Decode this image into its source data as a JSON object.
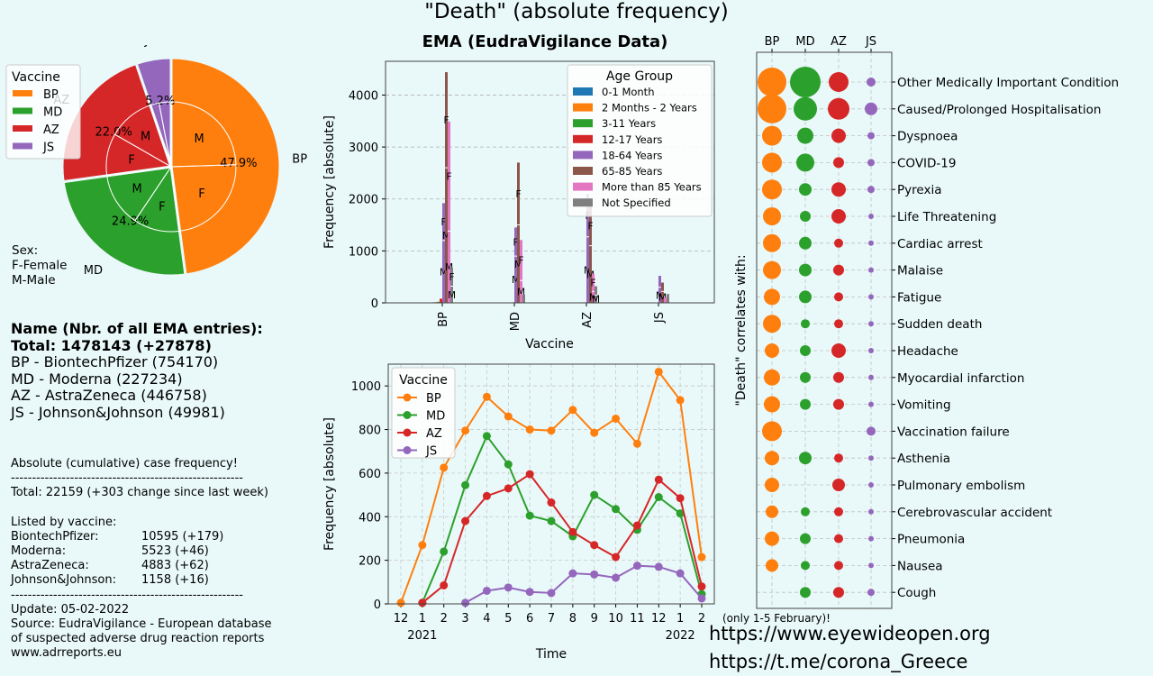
{
  "page_title": "\"Death\" (absolute frequency)",
  "legend_colors": {
    "BP": "#ff7f0e",
    "MD": "#2ca02c",
    "AZ": "#d62728",
    "JS": "#9467bd"
  },
  "pie_legend": {
    "title": "Vaccine",
    "items": [
      "BP",
      "MD",
      "AZ",
      "JS"
    ]
  },
  "sex_note": [
    "Sex:",
    "F-Female",
    "M-Male"
  ],
  "summary": {
    "heading": "Name  (Nbr. of all EMA entries):",
    "total": "Total: 1478143 (+27878)",
    "lines": [
      "BP - BiontechPfizer (754170)",
      "MD - Moderna (227234)",
      "AZ - AstraZeneca (446758)",
      "JS - Johnson&Johnson (49981)"
    ]
  },
  "cases": {
    "heading": "Absolute (cumulative) case frequency!",
    "divider": "-------------------------------------------------------",
    "total": "Total: 22159 (+303 change since last week)",
    "listed": "Listed by vaccine:",
    "rows": [
      {
        "name": "BiontechPfizer:",
        "value": "10595 (+179)"
      },
      {
        "name": "Moderna:",
        "value": "5523 (+46)"
      },
      {
        "name": "AstraZeneca:",
        "value": "4883 (+62)"
      },
      {
        "name": "Johnson&Johnson:",
        "value": "1158 (+16)"
      }
    ],
    "update": "Update: 05-02-2022",
    "source1": "Source: EudraVigilance - European database",
    "source2": "of suspected adverse drug reaction reports",
    "source3": "www.adrreports.eu"
  },
  "note_only": "(only 1-5 February)!",
  "links": [
    "https://www.eyewideopen.org",
    "https://t.me/corona_Greece"
  ],
  "chart_data": [
    {
      "type": "pie",
      "title": "",
      "outer": [
        {
          "label": "BP",
          "value": 47.9,
          "pct": "47.9%",
          "color": "#ff7f0e"
        },
        {
          "label": "MD",
          "value": 24.9,
          "pct": "24.9%",
          "color": "#2ca02c"
        },
        {
          "label": "AZ",
          "value": 22.0,
          "pct": "22.0%",
          "color": "#d62728"
        },
        {
          "label": "JS",
          "value": 5.2,
          "pct": "5.2%",
          "color": "#9467bd"
        }
      ],
      "inner": [
        {
          "vaccine": "BP",
          "sex": "M",
          "value": 24.5
        },
        {
          "vaccine": "BP",
          "sex": "F",
          "value": 23.4
        },
        {
          "vaccine": "MD",
          "sex": "F",
          "value": 11.5
        },
        {
          "vaccine": "MD",
          "sex": "M",
          "value": 13.4
        },
        {
          "vaccine": "AZ",
          "sex": "F",
          "value": 10.5
        },
        {
          "vaccine": "AZ",
          "sex": "M",
          "value": 11.5
        },
        {
          "vaccine": "JS",
          "sex": "F",
          "value": 2.2
        },
        {
          "vaccine": "JS",
          "sex": "M",
          "value": 3.0
        }
      ]
    },
    {
      "type": "bar",
      "title": "EMA (EudraVigilance Data)",
      "xlabel": "Vaccine",
      "ylabel": "Frequency [absolute]",
      "ylim": [
        0,
        4650
      ],
      "yticks": [
        0,
        1000,
        2000,
        3000,
        4000
      ],
      "categories": [
        "BP",
        "MD",
        "AZ",
        "JS"
      ],
      "legend_title": "Age Group",
      "grid": "horizontal dashed",
      "legend_position": "top-right",
      "series": [
        {
          "name": "0-1 Month",
          "color": "#1f77b4",
          "values": [
            10,
            5,
            5,
            0
          ],
          "split": [
            null,
            null,
            null,
            null
          ]
        },
        {
          "name": "2 Months - 2 Years",
          "color": "#ff7f0e",
          "values": [
            15,
            5,
            5,
            0
          ],
          "split": [
            null,
            null,
            null,
            null
          ]
        },
        {
          "name": "3-11 Years",
          "color": "#2ca02c",
          "values": [
            20,
            5,
            10,
            0
          ],
          "split": [
            null,
            null,
            null,
            null
          ]
        },
        {
          "name": "12-17 Years",
          "color": "#d62728",
          "values": [
            80,
            10,
            10,
            5
          ],
          "split": [
            null,
            null,
            null,
            null
          ]
        },
        {
          "name": "18-64 Years",
          "color": "#9467bd",
          "values": [
            1920,
            1450,
            2100,
            520
          ],
          "split": [
            1200,
            900,
            1270,
            300
          ]
        },
        {
          "name": "65-85 Years",
          "color": "#8c564b",
          "values": [
            4440,
            2700,
            1860,
            390
          ],
          "split": [
            2600,
            1500,
            1100,
            220
          ]
        },
        {
          "name": "More than 85 Years",
          "color": "#e377c2",
          "values": [
            3490,
            1210,
            560,
            110
          ],
          "split": [
            1380,
            430,
            220,
            null
          ]
        },
        {
          "name": "Not Specified",
          "color": "#7f7f7f",
          "values": [
            680,
            160,
            320,
            170
          ],
          "split": [
            320,
            null,
            150,
            null
          ]
        }
      ]
    },
    {
      "type": "line",
      "xlabel": "Time",
      "ylabel": "Frequency [absolute]",
      "ylim": [
        0,
        1100
      ],
      "yticks": [
        0,
        200,
        400,
        600,
        800,
        1000
      ],
      "x": [
        "12",
        "1",
        "2",
        "3",
        "4",
        "5",
        "6",
        "7",
        "8",
        "9",
        "10",
        "11",
        "12",
        "1",
        "2"
      ],
      "year_labels": [
        {
          "at": 1,
          "text": "2021"
        },
        {
          "at": 13,
          "text": "2022"
        }
      ],
      "legend_title": "Vaccine",
      "legend_position": "upper-left",
      "grid": "dashed",
      "series": [
        {
          "name": "BP",
          "color": "#ff7f0e",
          "values": [
            5,
            270,
            625,
            795,
            950,
            860,
            800,
            795,
            890,
            785,
            850,
            735,
            1065,
            935,
            215
          ]
        },
        {
          "name": "MD",
          "color": "#2ca02c",
          "values": [
            null,
            5,
            240,
            545,
            770,
            640,
            405,
            380,
            310,
            500,
            435,
            340,
            490,
            415,
            45
          ]
        },
        {
          "name": "AZ",
          "color": "#d62728",
          "values": [
            null,
            5,
            85,
            380,
            495,
            530,
            595,
            465,
            330,
            270,
            215,
            360,
            570,
            485,
            80
          ]
        },
        {
          "name": "JS",
          "color": "#9467bd",
          "values": [
            null,
            null,
            null,
            5,
            60,
            75,
            55,
            50,
            140,
            135,
            120,
            175,
            170,
            140,
            25
          ]
        }
      ]
    },
    {
      "type": "scatter",
      "subtype": "bubble-matrix",
      "ylabel": "\"Death\" correlates with:",
      "columns": [
        "BP",
        "MD",
        "AZ",
        "JS"
      ],
      "rows": [
        {
          "label": "Other Medically Important Condition",
          "sizes": [
            16,
            17,
            11,
            5
          ]
        },
        {
          "label": "Caused/Prolonged Hospitalisation",
          "sizes": [
            16,
            13,
            12,
            7
          ]
        },
        {
          "label": "Dyspnoea",
          "sizes": [
            11,
            9,
            8,
            4
          ]
        },
        {
          "label": "COVID-19",
          "sizes": [
            11,
            10,
            6,
            4
          ]
        },
        {
          "label": "Pyrexia",
          "sizes": [
            11,
            7,
            8,
            4
          ]
        },
        {
          "label": "Life Threatening",
          "sizes": [
            10,
            6,
            8,
            3
          ]
        },
        {
          "label": "Cardiac arrest",
          "sizes": [
            10,
            7,
            5,
            3
          ]
        },
        {
          "label": "Malaise",
          "sizes": [
            10,
            7,
            6,
            3
          ]
        },
        {
          "label": "Fatigue",
          "sizes": [
            9,
            7,
            5,
            3
          ]
        },
        {
          "label": "Sudden death",
          "sizes": [
            10,
            5,
            5,
            3
          ]
        },
        {
          "label": "Headache",
          "sizes": [
            8,
            6,
            8,
            3
          ]
        },
        {
          "label": "Myocardial infarction",
          "sizes": [
            9,
            6,
            6,
            3
          ]
        },
        {
          "label": "Vomiting",
          "sizes": [
            9,
            6,
            6,
            3
          ]
        },
        {
          "label": "Vaccination failure",
          "sizes": [
            11,
            0,
            0,
            5
          ]
        },
        {
          "label": "Asthenia",
          "sizes": [
            8,
            7,
            5,
            3
          ]
        },
        {
          "label": "Pulmonary embolism",
          "sizes": [
            8,
            0,
            7,
            3
          ]
        },
        {
          "label": "Cerebrovascular accident",
          "sizes": [
            7,
            5,
            5,
            3
          ]
        },
        {
          "label": "Pneumonia",
          "sizes": [
            8,
            6,
            5,
            3
          ]
        },
        {
          "label": "Nausea",
          "sizes": [
            7,
            5,
            5,
            3
          ]
        },
        {
          "label": "Cough",
          "sizes": [
            0,
            6,
            6,
            4
          ]
        }
      ]
    }
  ]
}
